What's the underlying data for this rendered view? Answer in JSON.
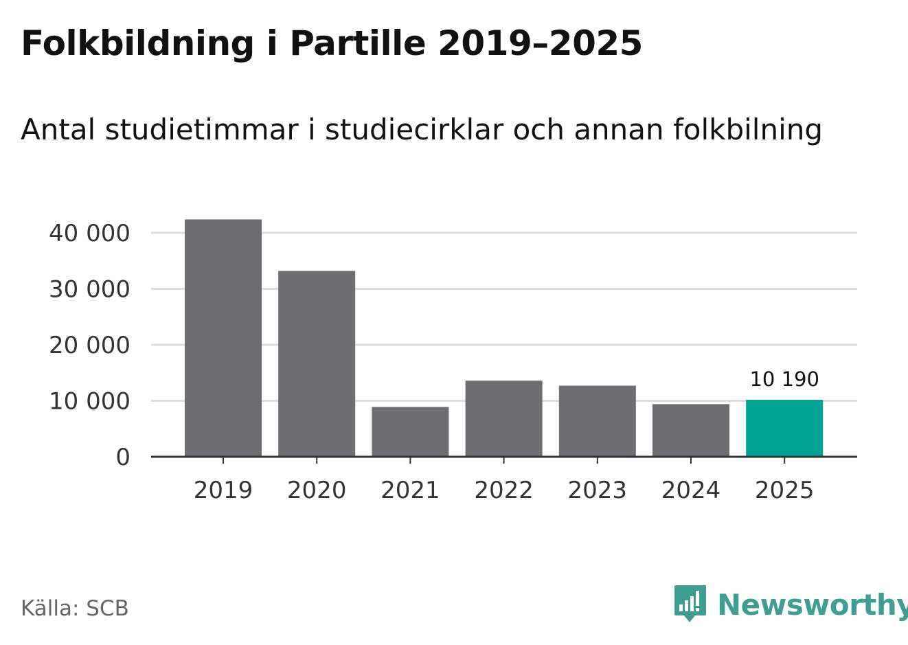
{
  "title": "Folkbildning i Partille 2019–2025",
  "subtitle": "Antal studietimmar i studiecirklar och annan folkbilning",
  "source": "Källa: SCB",
  "brand": {
    "name": "Newsworthy",
    "icon": "bar-chart-speech-bubble-icon",
    "color": "#3f9e93"
  },
  "chart_data": {
    "type": "bar",
    "categories": [
      "2019",
      "2020",
      "2021",
      "2022",
      "2023",
      "2024",
      "2025"
    ],
    "values": [
      42400,
      33200,
      8900,
      13600,
      12700,
      9400,
      10190
    ],
    "ylim": [
      0,
      42500
    ],
    "yticks": [
      0,
      10000,
      20000,
      30000,
      40000
    ],
    "ytick_labels": [
      "0",
      "10 000",
      "20 000",
      "30 000",
      "40 000"
    ],
    "data_labels": [
      {
        "index": 6,
        "text": "10 190"
      }
    ],
    "highlight_index": 6,
    "colors": {
      "bar": "#6e6d72",
      "highlight": "#00a396",
      "grid": "#dddddd",
      "axis": "#333333"
    },
    "grid": true,
    "xlabel": "",
    "ylabel": ""
  }
}
